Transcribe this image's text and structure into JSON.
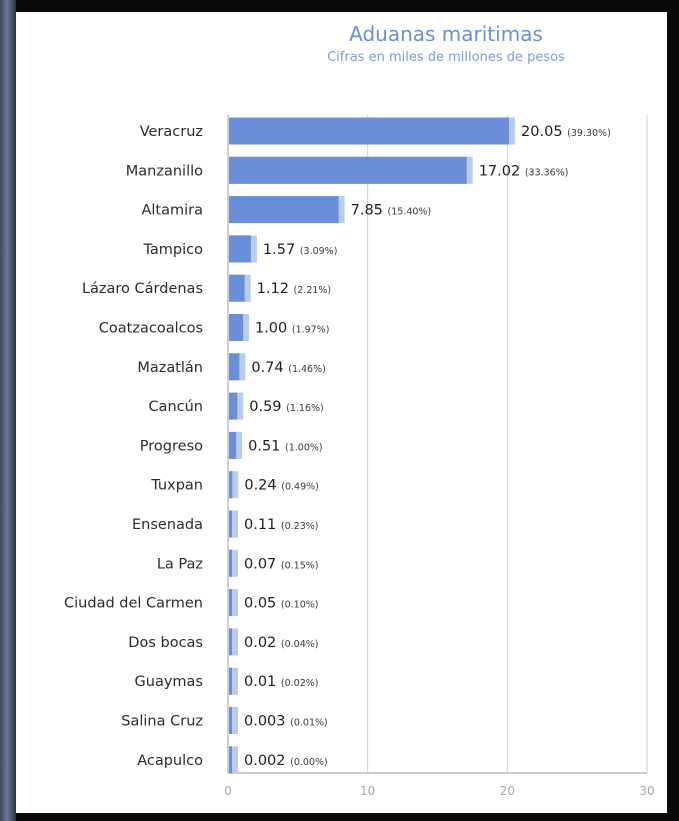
{
  "title": "Aduanas maritimas",
  "subtitle": "Cifras en miles de millones de pesos",
  "colors": {
    "bar": "#6a8fd8",
    "bar_light": "#b9cbee",
    "grid": "#cfcfcf",
    "axis": "#bdbdbd"
  },
  "chart_data": {
    "type": "bar",
    "orientation": "horizontal",
    "title": "Aduanas maritimas",
    "subtitle": "Cifras en miles de millones de pesos",
    "categories": [
      "Veracruz",
      "Manzanillo",
      "Altamira",
      "Tampico",
      "Lázaro Cárdenas",
      "Coatzacoalcos",
      "Mazatlán",
      "Cancún",
      "Progreso",
      "Tuxpan",
      "Ensenada",
      "La Paz",
      "Ciudad del Carmen",
      "Dos bocas",
      "Guaymas",
      "Salina Cruz",
      "Acapulco"
    ],
    "values": [
      20.05,
      17.02,
      7.85,
      1.57,
      1.12,
      1.0,
      0.74,
      0.59,
      0.51,
      0.24,
      0.11,
      0.07,
      0.05,
      0.02,
      0.01,
      0.003,
      0.002
    ],
    "value_labels": [
      "20.05",
      "17.02",
      "7.85",
      "1.57",
      "1.12",
      "1.00",
      "0.74",
      "0.59",
      "0.51",
      "0.24",
      "0.11",
      "0.07",
      "0.05",
      "0.02",
      "0.01",
      "0.003",
      "0.002"
    ],
    "percent_labels": [
      "(39.30%)",
      "(33.36%)",
      "(15.40%)",
      "(3.09%)",
      "(2.21%)",
      "(1.97%)",
      "(1.46%)",
      "(1.16%)",
      "(1.00%)",
      "(0.49%)",
      "(0.23%)",
      "(0.15%)",
      "(0.10%)",
      "(0.04%)",
      "(0.02%)",
      "(0.01%)",
      "(0.00%)"
    ],
    "xlim": [
      0,
      30
    ],
    "xticks": [
      "0",
      "10",
      "20",
      "30"
    ],
    "grid": true,
    "xlabel": "",
    "ylabel": ""
  }
}
